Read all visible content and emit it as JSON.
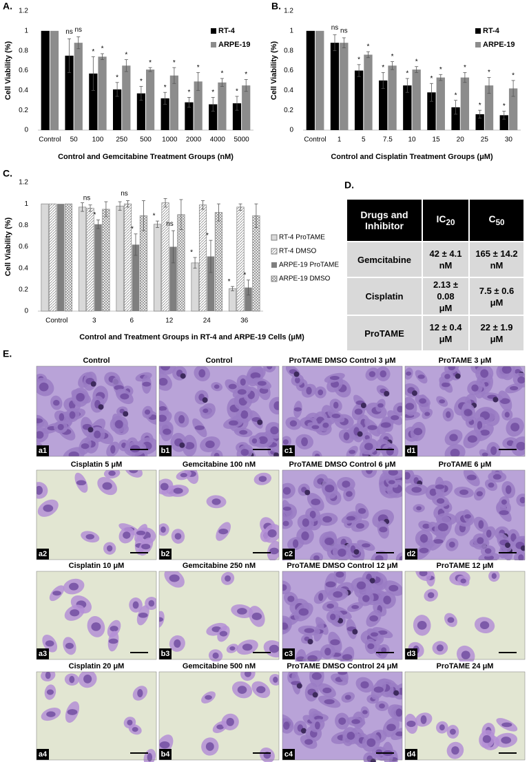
{
  "chart_data": [
    {
      "type": "bar",
      "panel": "A.",
      "ylabel": "Cell Viability (%)",
      "xlabel": "Control and Gemcitabine Treatment Groups (nM)",
      "categories": [
        "Control",
        "50",
        "100",
        "250",
        "500",
        "1000",
        "2000",
        "4000",
        "5000"
      ],
      "ylim": [
        0,
        1.2
      ],
      "yticks": [
        0,
        0.2,
        0.4,
        0.6,
        0.8,
        1,
        1.2
      ],
      "legend": "upper right",
      "series": [
        {
          "name": "RT-4",
          "color": "#000000",
          "pattern": "none",
          "values": [
            1,
            0.75,
            0.57,
            0.41,
            0.37,
            0.32,
            0.28,
            0.26,
            0.27
          ],
          "errors": [
            0,
            0.17,
            0.17,
            0.07,
            0.07,
            0.06,
            0.05,
            0.07,
            0.07
          ],
          "annotations": [
            null,
            "ns",
            "*",
            "*",
            "*",
            "*",
            "*",
            "*",
            "*"
          ]
        },
        {
          "name": "ARPE-19",
          "color": "#8c8c8c",
          "pattern": "none",
          "values": [
            1,
            0.88,
            0.74,
            0.65,
            0.61,
            0.55,
            0.49,
            0.48,
            0.45
          ],
          "errors": [
            0,
            0.06,
            0.03,
            0.06,
            0.02,
            0.08,
            0.09,
            0.04,
            0.06
          ],
          "annotations": [
            null,
            "ns",
            "*",
            "*",
            "*",
            "*",
            "*",
            "*",
            "*"
          ]
        }
      ]
    },
    {
      "type": "bar",
      "panel": "B.",
      "ylabel": "Cell Viability (%)",
      "xlabel": "Control and Cisplatin Treatment Groups (μM)",
      "categories": [
        "Control",
        "1",
        "5",
        "7.5",
        "10",
        "15",
        "20",
        "25",
        "30"
      ],
      "ylim": [
        0,
        1.2
      ],
      "yticks": [
        0,
        0.2,
        0.4,
        0.6,
        0.8,
        1,
        1.2
      ],
      "legend": "upper right",
      "series": [
        {
          "name": "RT-4",
          "color": "#000000",
          "pattern": "none",
          "values": [
            1,
            0.88,
            0.6,
            0.5,
            0.45,
            0.38,
            0.23,
            0.16,
            0.15
          ],
          "errors": [
            0,
            0.08,
            0.06,
            0.08,
            0.07,
            0.09,
            0.07,
            0.04,
            0.04
          ],
          "annotations": [
            null,
            "ns",
            "*",
            "*",
            "*",
            "*",
            "*",
            "*",
            "*"
          ]
        },
        {
          "name": "ARPE-19",
          "color": "#8c8c8c",
          "pattern": "none",
          "values": [
            1,
            0.88,
            0.76,
            0.65,
            0.61,
            0.53,
            0.53,
            0.45,
            0.42
          ],
          "errors": [
            0,
            0.05,
            0.03,
            0.04,
            0.03,
            0.03,
            0.05,
            0.08,
            0.08
          ],
          "annotations": [
            null,
            "ns",
            "*",
            "*",
            "*",
            "*",
            "*",
            "*",
            "*"
          ]
        }
      ]
    },
    {
      "type": "bar",
      "panel": "C.",
      "ylabel": "Cell Viability (%)",
      "xlabel": "Control and Treatment Groups in RT-4 and ARPE-19 Cells (μM)",
      "categories": [
        "Control",
        "3",
        "6",
        "12",
        "24",
        "36"
      ],
      "ylim": [
        0,
        1.2
      ],
      "yticks": [
        0,
        0.2,
        0.4,
        0.6,
        0.8,
        1,
        1.2
      ],
      "legend": "right",
      "series": [
        {
          "name": "RT-4 ProTAME",
          "color": "#d9d9d9",
          "pattern": "none",
          "values": [
            1,
            0.97,
            0.98,
            0.81,
            0.45,
            0.21
          ],
          "errors": [
            0,
            0.04,
            0.04,
            0.03,
            0.05,
            0.02
          ],
          "annotations": [
            null,
            null,
            null,
            "*",
            "*",
            "*"
          ]
        },
        {
          "name": "RT-4 DMSO",
          "color": "#ffffff",
          "pattern": "diagonal",
          "values": [
            1,
            0.96,
            1,
            1.01,
            0.99,
            0.97
          ],
          "errors": [
            0,
            0.03,
            0.03,
            0.04,
            0.04,
            0.03
          ],
          "annotations": [
            null,
            "ns",
            "ns",
            null,
            null,
            null
          ]
        },
        {
          "name": "ARPE-19 ProTAME",
          "color": "#7f7f7f",
          "pattern": "none",
          "values": [
            1,
            0.81,
            0.62,
            0.6,
            0.51,
            0.22
          ],
          "errors": [
            0,
            0.04,
            0.1,
            0.15,
            0.15,
            0.07
          ],
          "annotations": [
            null,
            "*",
            "*",
            "ns",
            "*",
            "*"
          ]
        },
        {
          "name": "ARPE-19 DMSO",
          "color": "#ffffff",
          "pattern": "cross",
          "values": [
            1,
            0.95,
            0.89,
            0.9,
            0.92,
            0.89
          ],
          "errors": [
            0,
            0.07,
            0.14,
            0.14,
            0.08,
            0.11
          ],
          "annotations": [
            null,
            null,
            null,
            null,
            null,
            null
          ]
        }
      ]
    }
  ],
  "table": {
    "panel": "D.",
    "header": [
      "Drugs and Inhibitor",
      {
        "text": "IC",
        "sub": "20"
      },
      {
        "text": "C",
        "sub": "50"
      }
    ],
    "rows": [
      [
        "Gemcitabine",
        [
          "42 ± 4.1",
          "nM"
        ],
        [
          "165 ± 14.2",
          "nM"
        ]
      ],
      [
        "Cisplatin",
        [
          "2.13 ± 0.08",
          "μM"
        ],
        [
          "7.5 ± 0.6",
          "μM"
        ]
      ],
      [
        "ProTAME",
        [
          "12 ± 0.4",
          "μM"
        ],
        [
          "22 ± 1.9",
          "μM"
        ]
      ]
    ]
  },
  "micrographs": {
    "panel": "E.",
    "images": [
      {
        "title": "Control",
        "label": "a1"
      },
      {
        "title": "Control",
        "label": "b1"
      },
      {
        "title": "ProTAME DMSO Control 3 μM",
        "label": "c1"
      },
      {
        "title": "ProTAME 3 μM",
        "label": "d1"
      },
      {
        "title": "Cisplatin 5 μM",
        "label": "a2"
      },
      {
        "title": "Gemcitabine 100 nM",
        "label": "b2"
      },
      {
        "title": "ProTAME DMSO Control 6 μM",
        "label": "c2"
      },
      {
        "title": "ProTAME 6 μM",
        "label": "d2"
      },
      {
        "title": "Cisplatin 10 μM",
        "label": "a3"
      },
      {
        "title": "Gemcitabine 250 nM",
        "label": "b3"
      },
      {
        "title": "ProTAME DMSO Control 12 μM",
        "label": "c3"
      },
      {
        "title": "ProTAME 12 μM",
        "label": "d3"
      },
      {
        "title": "Cisplatin 20 μM",
        "label": "a4"
      },
      {
        "title": "Gemcitabine 500 nM",
        "label": "b4"
      },
      {
        "title": "ProTAME DMSO Control 24 μM",
        "label": "c4"
      },
      {
        "title": "ProTAME 24 μM",
        "label": "d4"
      }
    ]
  }
}
